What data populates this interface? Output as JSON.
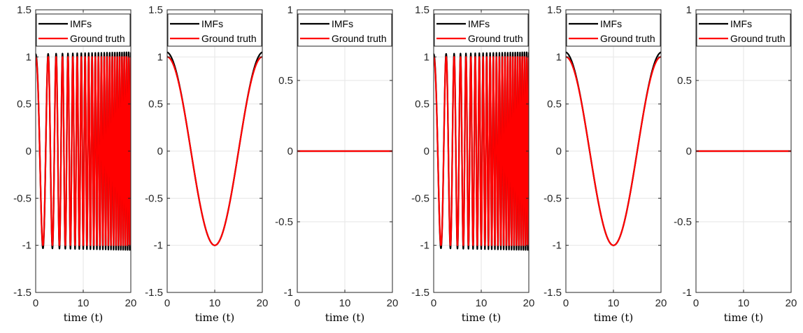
{
  "figure": {
    "layout": "1 row x 6 panels"
  },
  "chart_data": [
    {
      "type": "line",
      "panel": 1,
      "xlabel": "time (t)",
      "xlim": [
        0,
        20
      ],
      "ylim": [
        -1.5,
        1.5
      ],
      "xticks": [
        0,
        10,
        20
      ],
      "yticks": [
        -1.5,
        -1,
        -0.5,
        0,
        0.5,
        1,
        1.5
      ],
      "ytick_labels": [
        "-1.5",
        "-1",
        "-0.5",
        "0",
        "0.5",
        "1",
        "1.5"
      ],
      "grid": true,
      "legend": {
        "placement": "top",
        "entries": [
          "IMFs",
          "Ground truth"
        ]
      },
      "series": [
        {
          "name": "IMFs",
          "color": "#000000",
          "function": "chirp",
          "amplitude": 1.03,
          "amplitude_end": 1.05,
          "f0": 0.25,
          "k": 0.05
        },
        {
          "name": "Ground truth",
          "color": "#ff0000",
          "function": "chirp",
          "amplitude": 1.0,
          "f0": 0.25,
          "k": 0.05
        }
      ]
    },
    {
      "type": "line",
      "panel": 2,
      "xlabel": "time (t)",
      "xlim": [
        0,
        20
      ],
      "ylim": [
        -1.5,
        1.5
      ],
      "xticks": [
        0,
        10,
        20
      ],
      "yticks": [
        -1.5,
        -1,
        -0.5,
        0,
        0.5,
        1,
        1.5
      ],
      "ytick_labels": [
        "-1.5",
        "-1",
        "-0.5",
        "0",
        "0.5",
        "1",
        "1.5"
      ],
      "grid": true,
      "legend": {
        "placement": "top",
        "entries": [
          "IMFs",
          "Ground truth"
        ]
      },
      "series": [
        {
          "name": "IMFs",
          "color": "#000000",
          "function": "cos",
          "amplitude": 1.0,
          "edge_amplitude": 1.05,
          "period": 20
        },
        {
          "name": "Ground truth",
          "color": "#ff0000",
          "function": "cos",
          "amplitude": 1.0,
          "edge_amplitude": 1.0,
          "period": 20
        }
      ]
    },
    {
      "type": "line",
      "panel": 3,
      "xlabel": "time (t)",
      "xlim": [
        0,
        20
      ],
      "ylim": [
        -1,
        1
      ],
      "xticks": [
        0,
        10,
        20
      ],
      "yticks": [
        -1,
        -0.5,
        0,
        0.5,
        1
      ],
      "ytick_labels": [
        "-1",
        "-0.5",
        "0",
        "0.5",
        "1"
      ],
      "grid": true,
      "legend": {
        "placement": "top",
        "entries": [
          "IMFs",
          "Ground truth"
        ]
      },
      "series": [
        {
          "name": "IMFs",
          "color": "#000000",
          "function": "zero"
        },
        {
          "name": "Ground truth",
          "color": "#ff0000",
          "function": "zero"
        }
      ]
    },
    {
      "type": "line",
      "panel": 4,
      "xlabel": "time (t)",
      "xlim": [
        0,
        20
      ],
      "ylim": [
        -1.5,
        1.5
      ],
      "xticks": [
        0,
        10,
        20
      ],
      "yticks": [
        -1.5,
        -1,
        -0.5,
        0,
        0.5,
        1,
        1.5
      ],
      "ytick_labels": [
        "-1.5",
        "-1",
        "-0.5",
        "0",
        "0.5",
        "1",
        "1.5"
      ],
      "grid": true,
      "legend": {
        "placement": "top",
        "entries": [
          "IMFs",
          "Ground truth"
        ]
      },
      "series": [
        {
          "name": "IMFs",
          "color": "#000000",
          "function": "chirp",
          "amplitude": 1.03,
          "amplitude_end": 1.05,
          "f0": 0.25,
          "k": 0.05
        },
        {
          "name": "Ground truth",
          "color": "#ff0000",
          "function": "chirp",
          "amplitude": 1.0,
          "f0": 0.25,
          "k": 0.05
        }
      ]
    },
    {
      "type": "line",
      "panel": 5,
      "xlabel": "time (t)",
      "xlim": [
        0,
        20
      ],
      "ylim": [
        -1.5,
        1.5
      ],
      "xticks": [
        0,
        10,
        20
      ],
      "yticks": [
        -1.5,
        -1,
        -0.5,
        0,
        0.5,
        1,
        1.5
      ],
      "ytick_labels": [
        "-1.5",
        "-1",
        "-0.5",
        "0",
        "0.5",
        "1",
        "1.5"
      ],
      "grid": true,
      "legend": {
        "placement": "top",
        "entries": [
          "IMFs",
          "Ground truth"
        ]
      },
      "series": [
        {
          "name": "IMFs",
          "color": "#000000",
          "function": "cos",
          "amplitude": 1.0,
          "edge_amplitude": 1.05,
          "period": 20
        },
        {
          "name": "Ground truth",
          "color": "#ff0000",
          "function": "cos",
          "amplitude": 1.0,
          "edge_amplitude": 1.0,
          "period": 20
        }
      ]
    },
    {
      "type": "line",
      "panel": 6,
      "xlabel": "time (t)",
      "xlim": [
        0,
        20
      ],
      "ylim": [
        -1,
        1
      ],
      "xticks": [
        0,
        10,
        20
      ],
      "yticks": [
        -1,
        -0.5,
        0,
        0.5,
        1
      ],
      "ytick_labels": [
        "-1",
        "-0.5",
        "0",
        "0.5",
        "1"
      ],
      "grid": true,
      "legend": {
        "placement": "top",
        "entries": [
          "IMFs",
          "Ground truth"
        ]
      },
      "series": [
        {
          "name": "IMFs",
          "color": "#000000",
          "function": "zero"
        },
        {
          "name": "Ground truth",
          "color": "#ff0000",
          "function": "zero"
        }
      ]
    }
  ]
}
